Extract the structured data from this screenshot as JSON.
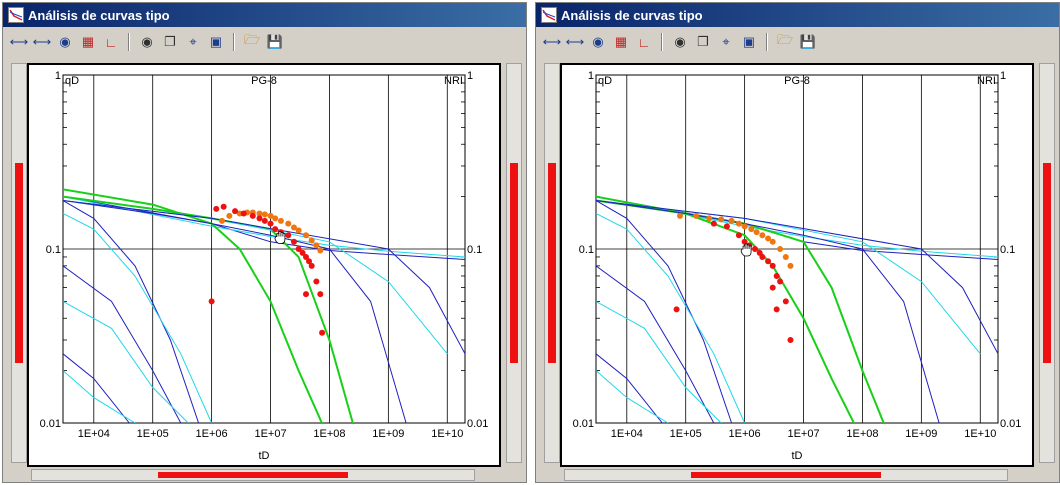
{
  "windows": [
    {
      "title": "Análisis de curvas tipo",
      "toolbar": [
        "zoom-in-icon",
        "zoom-out-icon",
        "binoculars-icon",
        "color-bars-icon",
        "curve-chart-icon",
        "camera-icon",
        "copy-icon",
        "fit-extent-icon",
        "screen-icon",
        "open-folder-icon",
        "save-icon"
      ],
      "left_scroll_level": 0.5,
      "right_scroll_level": 0.5,
      "hscroll_level": 0.5,
      "cursor": "hand-cursor-icon",
      "chart_data": {
        "type": "scatter",
        "title": "PG-8",
        "y_left_label": "qD",
        "y_right_label": "NRI",
        "xlabel": "tD",
        "x_scale": "log",
        "y_scale": "log",
        "xlim": [
          3000,
          20000000000
        ],
        "ylim": [
          0.01,
          1
        ],
        "x_ticks": [
          "1E+04",
          "1E+05",
          "1E+06",
          "1E+07",
          "1E+08",
          "1E+09",
          "1E+10"
        ],
        "y_ticks_left": [
          "1",
          "0.1",
          "0.01"
        ],
        "y_ticks_right": [
          "1",
          "0.1",
          "0.01"
        ],
        "grid": true,
        "colors": {
          "dark_blue": "#2020c0",
          "cyan": "#20d8e8",
          "green": "#18d018",
          "red_points": "#ee1111",
          "orange_points": "#ee7711"
        },
        "series": [
          {
            "color": "#2020c0",
            "kind": "line",
            "x": [
              3000,
              1000000,
              10000000,
              100000000,
              1000000000,
              20000000000
            ],
            "y": [
              0.2,
              0.14,
              0.11,
              0.098,
              0.093,
              0.087
            ]
          },
          {
            "color": "#20d8e8",
            "kind": "line",
            "x": [
              3000,
              1000000,
              10000000,
              100000000,
              1000000000,
              20000000000
            ],
            "y": [
              0.2,
              0.135,
              0.118,
              0.105,
              0.097,
              0.09
            ]
          },
          {
            "color": "#18d018",
            "kind": "line",
            "x": [
              3000,
              100000,
              1000000,
              3000000,
              10000000,
              30000000,
              100000000
            ],
            "y": [
              0.22,
              0.18,
              0.14,
              0.1,
              0.05,
              0.02,
              0.008
            ]
          },
          {
            "color": "#18d018",
            "kind": "line",
            "x": [
              3000,
              100000,
              1000000,
              10000000,
              30000000,
              100000000,
              300000000
            ],
            "y": [
              0.2,
              0.17,
              0.15,
              0.13,
              0.09,
              0.03,
              0.008
            ]
          },
          {
            "color": "#2020c0",
            "kind": "line",
            "x": [
              3000,
              100000,
              1000000,
              10000000,
              100000000,
              500000000,
              2000000000
            ],
            "y": [
              0.19,
              0.16,
              0.14,
              0.12,
              0.1,
              0.05,
              0.01
            ]
          },
          {
            "color": "#20d8e8",
            "kind": "line",
            "x": [
              3000,
              1000000,
              100000000,
              1000000000,
              10000000000
            ],
            "y": [
              0.19,
              0.15,
              0.11,
              0.065,
              0.025
            ]
          },
          {
            "color": "#2020c0",
            "kind": "line",
            "x": [
              3000,
              1000000,
              1000000000,
              5000000000,
              20000000000
            ],
            "y": [
              0.19,
              0.15,
              0.1,
              0.06,
              0.025
            ]
          },
          {
            "color": "#2020c0",
            "kind": "line",
            "x": [
              3000,
              10000,
              50000,
              200000,
              600000
            ],
            "y": [
              0.19,
              0.15,
              0.08,
              0.03,
              0.01
            ]
          },
          {
            "color": "#20d8e8",
            "kind": "line",
            "x": [
              3000,
              10000,
              50000,
              300000,
              1000000
            ],
            "y": [
              0.16,
              0.13,
              0.07,
              0.025,
              0.01
            ]
          },
          {
            "color": "#2020c0",
            "kind": "line",
            "x": [
              3000,
              20000,
              100000,
              300000
            ],
            "y": [
              0.08,
              0.05,
              0.02,
              0.01
            ]
          },
          {
            "color": "#20d8e8",
            "kind": "line",
            "x": [
              3000,
              20000,
              100000,
              400000
            ],
            "y": [
              0.05,
              0.035,
              0.016,
              0.01
            ]
          },
          {
            "color": "#2020c0",
            "kind": "line",
            "x": [
              3000,
              10000,
              40000
            ],
            "y": [
              0.025,
              0.018,
              0.01
            ]
          },
          {
            "color": "#20d8e8",
            "kind": "line",
            "x": [
              3000,
              10000,
              50000
            ],
            "y": [
              0.02,
              0.014,
              0.01
            ]
          },
          {
            "color": "#ee7711",
            "kind": "points",
            "x": [
              1500000,
              2000000,
              3000000,
              4000000,
              5000000,
              6500000,
              8000000,
              10000000,
              12000000,
              15000000,
              20000000,
              25000000,
              30000000,
              40000000,
              50000000,
              60000000,
              70000000
            ],
            "y": [
              0.145,
              0.155,
              0.16,
              0.162,
              0.162,
              0.16,
              0.158,
              0.155,
              0.15,
              0.145,
              0.14,
              0.133,
              0.128,
              0.12,
              0.112,
              0.105,
              0.098
            ]
          },
          {
            "color": "#ee1111",
            "kind": "points",
            "x": [
              1200000,
              1600000,
              2500000,
              3500000,
              5000000,
              6500000,
              8000000,
              10000000,
              12000000,
              15000000,
              20000000,
              25000000,
              30000000,
              35000000,
              40000000,
              45000000,
              50000000,
              60000000,
              70000000,
              75000000,
              1000000,
              40000000
            ],
            "y": [
              0.17,
              0.175,
              0.165,
              0.16,
              0.155,
              0.15,
              0.145,
              0.14,
              0.13,
              0.125,
              0.12,
              0.11,
              0.1,
              0.095,
              0.09,
              0.085,
              0.08,
              0.065,
              0.055,
              0.033,
              0.05,
              0.055
            ]
          }
        ]
      }
    },
    {
      "title": "Análisis de curvas tipo",
      "toolbar": [
        "zoom-in-icon",
        "zoom-out-icon",
        "binoculars-icon",
        "color-bars-icon",
        "curve-chart-icon",
        "camera-icon",
        "copy-icon",
        "fit-extent-icon",
        "screen-icon",
        "open-folder-icon",
        "save-icon"
      ],
      "left_scroll_level": 0.5,
      "right_scroll_level": 0.5,
      "hscroll_level": 0.5,
      "cursor": "hand-cursor-icon",
      "chart_data": {
        "type": "scatter",
        "title": "PG-8",
        "y_left_label": "qD",
        "y_right_label": "NRI",
        "xlabel": "tD",
        "x_scale": "log",
        "y_scale": "log",
        "xlim": [
          3000,
          20000000000
        ],
        "ylim": [
          0.01,
          1
        ],
        "x_ticks": [
          "1E+04",
          "1E+05",
          "1E+06",
          "1E+07",
          "1E+08",
          "1E+09",
          "1E+10"
        ],
        "y_ticks_left": [
          "1",
          "0.1",
          "0.01"
        ],
        "y_ticks_right": [
          "1",
          "0.1",
          "0.01"
        ],
        "grid": true,
        "colors": {
          "dark_blue": "#2020c0",
          "cyan": "#20d8e8",
          "green": "#18d018",
          "red_points": "#ee1111",
          "orange_points": "#ee7711"
        },
        "series": [
          {
            "color": "#2020c0",
            "kind": "line",
            "x": [
              3000,
              1000000,
              10000000,
              100000000,
              1000000000,
              20000000000
            ],
            "y": [
              0.2,
              0.14,
              0.11,
              0.098,
              0.093,
              0.087
            ]
          },
          {
            "color": "#20d8e8",
            "kind": "line",
            "x": [
              3000,
              1000000,
              10000000,
              100000000,
              1000000000,
              20000000000
            ],
            "y": [
              0.2,
              0.135,
              0.118,
              0.105,
              0.097,
              0.09
            ]
          },
          {
            "color": "#18d018",
            "kind": "line",
            "x": [
              3000,
              100000,
              1000000,
              3000000,
              10000000,
              30000000,
              100000000
            ],
            "y": [
              0.2,
              0.16,
              0.12,
              0.08,
              0.04,
              0.018,
              0.008
            ]
          },
          {
            "color": "#18d018",
            "kind": "line",
            "x": [
              3000,
              100000,
              1000000,
              10000000,
              30000000,
              100000000,
              300000000
            ],
            "y": [
              0.19,
              0.16,
              0.14,
              0.11,
              0.06,
              0.02,
              0.008
            ]
          },
          {
            "color": "#2020c0",
            "kind": "line",
            "x": [
              3000,
              100000,
              1000000,
              10000000,
              100000000,
              500000000,
              2000000000
            ],
            "y": [
              0.19,
              0.16,
              0.14,
              0.12,
              0.1,
              0.05,
              0.01
            ]
          },
          {
            "color": "#20d8e8",
            "kind": "line",
            "x": [
              3000,
              1000000,
              100000000,
              1000000000,
              10000000000
            ],
            "y": [
              0.19,
              0.15,
              0.11,
              0.065,
              0.025
            ]
          },
          {
            "color": "#2020c0",
            "kind": "line",
            "x": [
              3000,
              1000000,
              1000000000,
              5000000000,
              20000000000
            ],
            "y": [
              0.19,
              0.15,
              0.1,
              0.06,
              0.025
            ]
          },
          {
            "color": "#2020c0",
            "kind": "line",
            "x": [
              3000,
              10000,
              50000,
              200000,
              600000
            ],
            "y": [
              0.19,
              0.15,
              0.08,
              0.03,
              0.01
            ]
          },
          {
            "color": "#20d8e8",
            "kind": "line",
            "x": [
              3000,
              10000,
              50000,
              300000,
              1000000
            ],
            "y": [
              0.16,
              0.13,
              0.07,
              0.025,
              0.01
            ]
          },
          {
            "color": "#2020c0",
            "kind": "line",
            "x": [
              3000,
              20000,
              100000,
              300000
            ],
            "y": [
              0.08,
              0.05,
              0.02,
              0.01
            ]
          },
          {
            "color": "#20d8e8",
            "kind": "line",
            "x": [
              3000,
              20000,
              100000,
              400000
            ],
            "y": [
              0.05,
              0.035,
              0.016,
              0.01
            ]
          },
          {
            "color": "#2020c0",
            "kind": "line",
            "x": [
              3000,
              10000,
              40000
            ],
            "y": [
              0.025,
              0.018,
              0.01
            ]
          },
          {
            "color": "#20d8e8",
            "kind": "line",
            "x": [
              3000,
              10000,
              50000
            ],
            "y": [
              0.02,
              0.014,
              0.01
            ]
          },
          {
            "color": "#ee7711",
            "kind": "points",
            "x": [
              80000,
              150000,
              250000,
              400000,
              600000,
              800000,
              1000000,
              1300000,
              1600000,
              2000000,
              2500000,
              3000000,
              4000000,
              5000000,
              6000000
            ],
            "y": [
              0.155,
              0.155,
              0.15,
              0.148,
              0.145,
              0.14,
              0.135,
              0.13,
              0.125,
              0.12,
              0.115,
              0.11,
              0.1,
              0.09,
              0.08
            ]
          },
          {
            "color": "#ee1111",
            "kind": "points",
            "x": [
              70000,
              300000,
              500000,
              800000,
              1000000,
              1200000,
              1500000,
              1800000,
              2000000,
              2500000,
              3000000,
              3500000,
              4000000,
              5000000,
              6000000,
              3500000,
              3000000
            ],
            "y": [
              0.045,
              0.14,
              0.135,
              0.12,
              0.11,
              0.105,
              0.1,
              0.095,
              0.09,
              0.085,
              0.08,
              0.07,
              0.065,
              0.05,
              0.03,
              0.045,
              0.06
            ]
          }
        ]
      }
    }
  ]
}
